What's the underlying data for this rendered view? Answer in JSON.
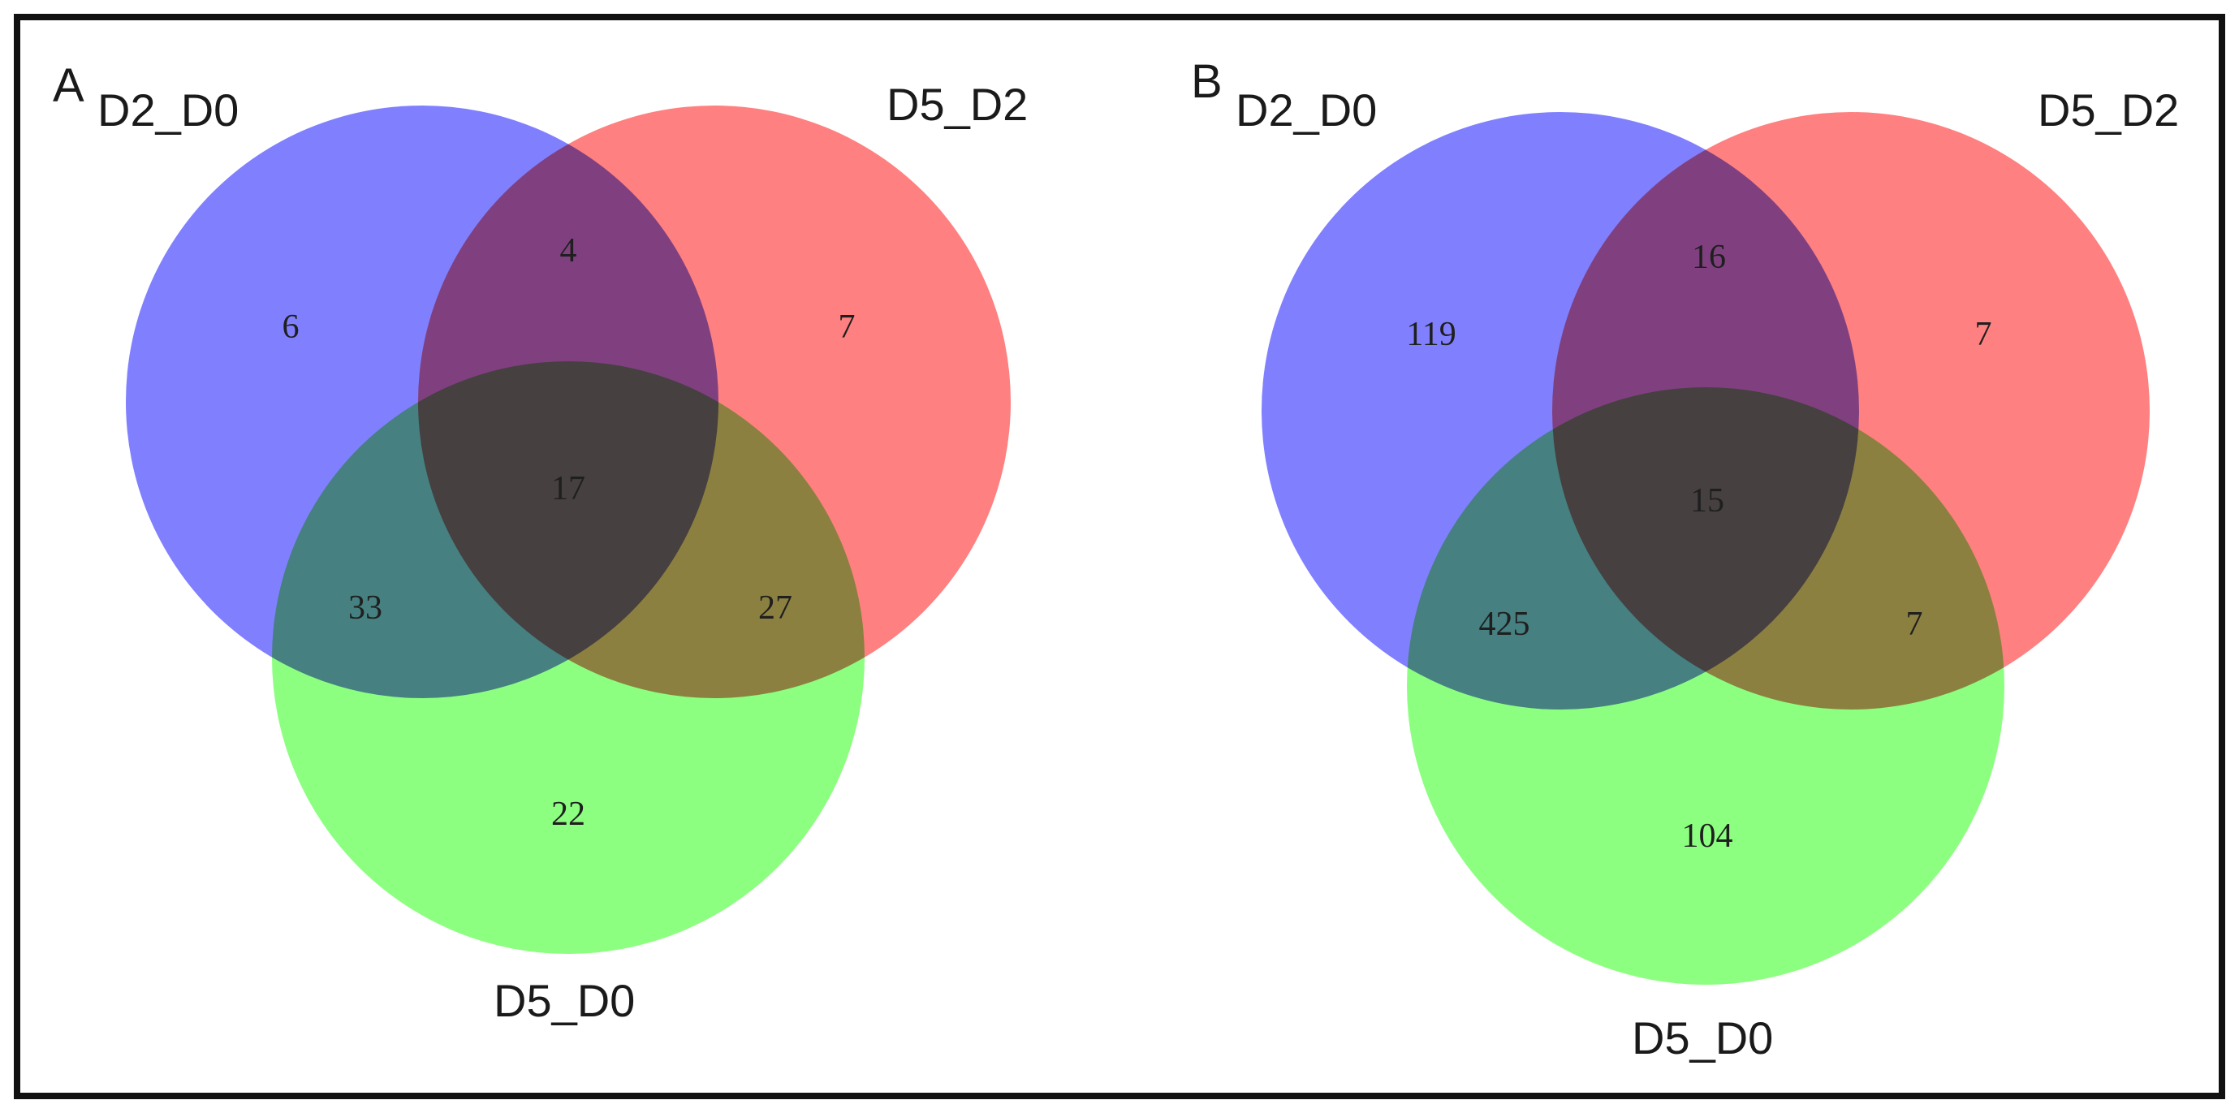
{
  "colors": {
    "set1": "#8080ff",
    "set2": "#ff8080",
    "set3": "#8cff80",
    "frame": "#111111"
  },
  "panels": [
    {
      "letter": "A",
      "sets": {
        "set1": "D2_D0",
        "set2": "D5_D2",
        "set3": "D5_D0"
      },
      "counts": {
        "only1": "6",
        "only2": "7",
        "only3": "22",
        "i12": "4",
        "i13": "33",
        "i23": "27",
        "i123": "17"
      }
    },
    {
      "letter": "B",
      "sets": {
        "set1": "D2_D0",
        "set2": "D5_D2",
        "set3": "D5_D0"
      },
      "counts": {
        "only1": "119",
        "only2": "7",
        "only3": "104",
        "i12": "16",
        "i13": "425",
        "i23": "7",
        "i123": "15"
      }
    }
  ]
}
